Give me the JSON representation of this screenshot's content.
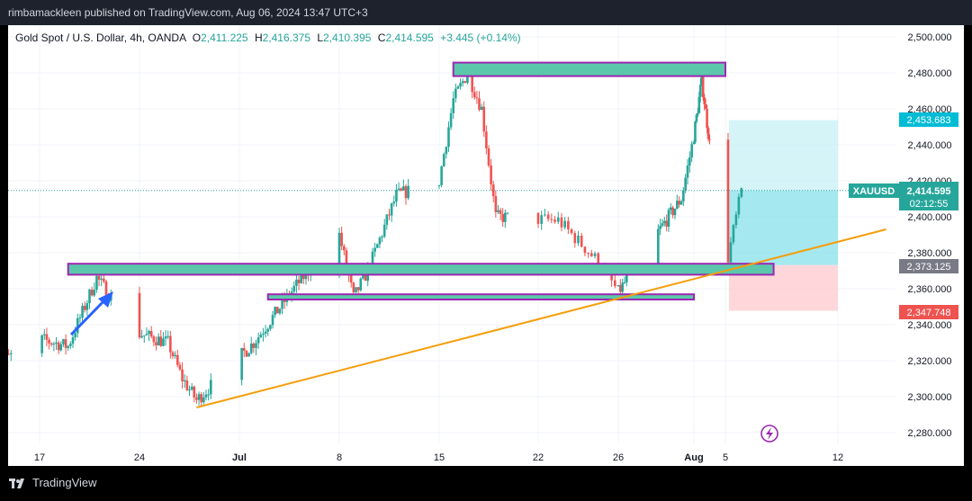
{
  "publish_line": "rimbamackleen published on TradingView.com, Aug 06, 2024 13:47 UTC+3",
  "legend": {
    "symbol": "Gold Spot / U.S. Dollar, 4h, OANDA",
    "o_label": "O",
    "o": "2,411.225",
    "h_label": "H",
    "h": "2,416.375",
    "l_label": "L",
    "l": "2,410.395",
    "c_label": "C",
    "c": "2,414.595",
    "change": "+3.445 (+0.14%)"
  },
  "price_badges": {
    "symbol": "XAUUSD",
    "current": "2,414.595",
    "countdown": "02:12:55",
    "target": "2,453.683",
    "entry": "2,373.125",
    "stop": "2,347.748"
  },
  "brand": "TradingView",
  "colors": {
    "up": "#26a69a",
    "down": "#ef5350",
    "zone_fill": "#5cc8ab",
    "zone_border": "#9c27b0",
    "trendline": "#f59e0b",
    "arrow": "#2962ff",
    "target_area": "#b2ebf2",
    "stop_area": "#ffcdd2"
  },
  "icons": [
    "arrow-icon",
    "lightning-icon",
    "tradingview-logo-icon"
  ],
  "chart_data": {
    "type": "candlestick",
    "title": "Gold Spot / U.S. Dollar, 4h, OANDA",
    "y_ticks": [
      "2,280.000",
      "2,300.000",
      "2,320.000",
      "2,340.000",
      "2,360.000",
      "2,380.000",
      "2,400.000",
      "2,420.000",
      "2,440.000",
      "2,460.000",
      "2,480.000",
      "2,500.000"
    ],
    "x_ticks": [
      {
        "label": "17",
        "bold": false
      },
      {
        "label": "24",
        "bold": false
      },
      {
        "label": "Jul",
        "bold": true
      },
      {
        "label": "8",
        "bold": false
      },
      {
        "label": "15",
        "bold": false
      },
      {
        "label": "22",
        "bold": false
      },
      {
        "label": "26",
        "bold": false
      },
      {
        "label": "Aug",
        "bold": true
      },
      {
        "label": "5",
        "bold": false
      },
      {
        "label": "12",
        "bold": false
      }
    ],
    "ylim": [
      2270,
      2508
    ],
    "grid": true,
    "price_path_approx": [
      [
        "2024-06-14",
        2318
      ],
      [
        "2024-06-17",
        2332
      ],
      [
        "2024-06-19",
        2328
      ],
      [
        "2024-06-21",
        2366
      ],
      [
        "2024-06-24",
        2335
      ],
      [
        "2024-06-26",
        2330
      ],
      [
        "2024-06-27",
        2310
      ],
      [
        "2024-06-28",
        2298
      ],
      [
        "2024-07-02",
        2330
      ],
      [
        "2024-07-05",
        2362
      ],
      [
        "2024-07-08",
        2390
      ],
      [
        "2024-07-09",
        2355
      ],
      [
        "2024-07-10",
        2370
      ],
      [
        "2024-07-12",
        2412
      ],
      [
        "2024-07-15",
        2420
      ],
      [
        "2024-07-16",
        2465
      ],
      [
        "2024-07-17",
        2480
      ],
      [
        "2024-07-18",
        2460
      ],
      [
        "2024-07-19",
        2400
      ],
      [
        "2024-07-23",
        2398
      ],
      [
        "2024-07-25",
        2375
      ],
      [
        "2024-07-26",
        2358
      ],
      [
        "2024-07-29",
        2390
      ],
      [
        "2024-07-31",
        2410
      ],
      [
        "2024-08-01",
        2445
      ],
      [
        "2024-08-02",
        2476
      ],
      [
        "2024-08-05",
        2370
      ],
      [
        "2024-08-06",
        2414.6
      ]
    ],
    "zones": [
      {
        "from": 2478.2,
        "to": 2485.7,
        "start": "2024-07-16",
        "end": "2024-08-05"
      },
      {
        "from": 2367.8,
        "to": 2373.9,
        "start": "2024-06-19",
        "end": "2024-08-08"
      },
      {
        "from": 2354.0,
        "to": 2356.9,
        "start": "2024-07-03",
        "end": "2024-08-01"
      }
    ],
    "trendline": {
      "from": {
        "date": "2024-06-28",
        "price": 2294
      },
      "to": {
        "date": "2024-08-15",
        "price": 2393
      }
    },
    "position": {
      "target": 2453.683,
      "entry": 2373.125,
      "stop": 2347.748,
      "current": 2414.595
    }
  }
}
